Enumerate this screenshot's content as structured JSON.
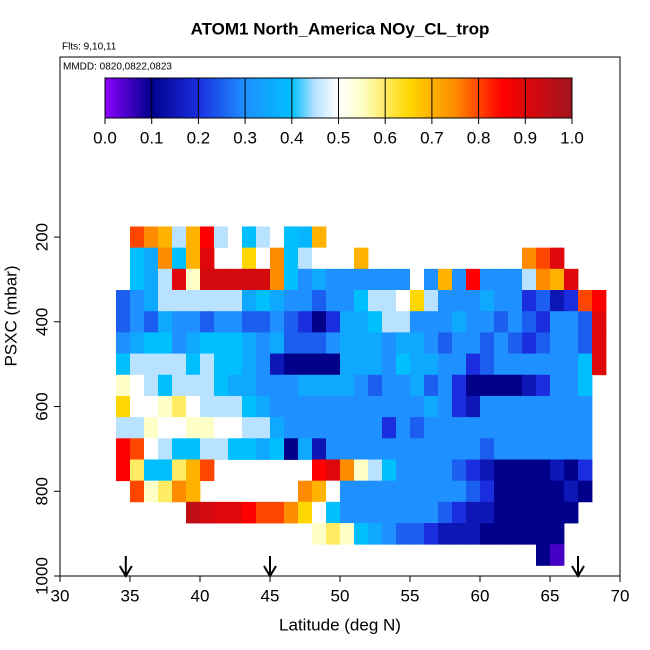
{
  "chart_data": {
    "type": "heatmap",
    "title": "ATOM1 North_America NOy_CL_trop",
    "subtitle": "Flts: 9,10,11",
    "annotation": "MMDD: 0820,0822,0823",
    "xlabel": "Latitude (deg N)",
    "ylabel": "PSXC (mbar)",
    "xlim": [
      30,
      70
    ],
    "xticks": [
      30,
      35,
      40,
      45,
      50,
      55,
      60,
      65,
      70
    ],
    "ylim": [
      1000,
      -225
    ],
    "yticks": [
      200,
      400,
      600,
      800,
      1000
    ],
    "colorbar_ticks": [
      {
        "value": 0,
        "label": "0.0"
      },
      0.1,
      0.2,
      0.3,
      0.4,
      0.5,
      0.6,
      0.7,
      0.8,
      0.9,
      {
        "value": 1,
        "label": "1.0"
      }
    ],
    "colorscale": [
      [
        0,
        "#8b00ff"
      ],
      [
        0.1,
        "#00008b"
      ],
      [
        0.2,
        "#1a2ee0"
      ],
      [
        0.3,
        "#1e90ff"
      ],
      [
        0.4,
        "#00bfff"
      ],
      [
        0.45,
        "#b8e2ff"
      ],
      [
        0.5,
        "#ffffff"
      ],
      [
        0.55,
        "#ffffc8"
      ],
      [
        0.65,
        "#ffd700"
      ],
      [
        0.75,
        "#ff8c00"
      ],
      [
        0.85,
        "#ff0000"
      ],
      [
        1,
        "#a0141e"
      ]
    ],
    "arrows_x": [
      34.7,
      45,
      67
    ],
    "x": [
      34,
      35,
      36,
      37,
      38,
      39,
      40,
      41,
      42,
      43,
      44,
      45,
      46,
      47,
      48,
      49,
      50,
      51,
      52,
      53,
      54,
      55,
      56,
      57,
      58,
      59,
      60,
      61,
      62,
      63,
      64,
      65,
      66,
      67,
      68,
      69
    ],
    "y": [
      175,
      225,
      275,
      325,
      375,
      425,
      475,
      525,
      575,
      625,
      675,
      725,
      775,
      825,
      875,
      925,
      975
    ],
    "z": [
      [
        null,
        0.8,
        0.75,
        0.7,
        0.45,
        0.7,
        0.85,
        0.45,
        0.5,
        0.4,
        0.45,
        0.5,
        0.4,
        0.38,
        0.7,
        null,
        null,
        null,
        null,
        null,
        null,
        null,
        null,
        null,
        null,
        null,
        null,
        null,
        null,
        null,
        null,
        null,
        null,
        null,
        null
      ],
      [
        null,
        0.4,
        0.35,
        0.75,
        0.4,
        0.7,
        0.9,
        null,
        0.5,
        0.65,
        0.5,
        0.75,
        0.4,
        0.45,
        0.5,
        0.5,
        0.5,
        0.7,
        null,
        null,
        null,
        null,
        null,
        null,
        null,
        null,
        null,
        null,
        null,
        0.75,
        0.8,
        0.9,
        null,
        null,
        null
      ],
      [
        null,
        0.4,
        0.35,
        0.45,
        0.9,
        0.55,
        0.92,
        0.92,
        0.92,
        0.92,
        0.92,
        0.75,
        0.4,
        0.3,
        0.35,
        0.3,
        0.3,
        0.3,
        0.3,
        0.3,
        0.3,
        0.5,
        0.3,
        0.7,
        0.3,
        0.85,
        0.3,
        0.3,
        0.3,
        0.45,
        0.75,
        0.7,
        0.9,
        null,
        null
      ],
      [
        0.25,
        0.3,
        0.35,
        0.45,
        0.45,
        0.45,
        0.45,
        0.45,
        0.45,
        0.35,
        0.4,
        0.35,
        0.3,
        0.3,
        0.25,
        0.3,
        0.3,
        0.4,
        0.45,
        0.45,
        0.5,
        0.65,
        0.45,
        0.3,
        0.3,
        0.3,
        0.35,
        0.3,
        0.3,
        0.2,
        0.25,
        0.15,
        0.2,
        0.8,
        0.85
      ],
      [
        0.25,
        0.3,
        0.25,
        0.35,
        0.3,
        0.3,
        0.25,
        0.3,
        0.3,
        0.25,
        0.25,
        0.3,
        0.25,
        0.2,
        0.1,
        0.2,
        0.35,
        0.35,
        0.4,
        0.45,
        0.45,
        0.3,
        0.3,
        0.3,
        0.35,
        0.3,
        0.3,
        0.25,
        0.3,
        0.25,
        0.2,
        0.3,
        0.3,
        0.25,
        0.9
      ],
      [
        0.3,
        0.35,
        0.4,
        0.4,
        0.3,
        0.35,
        0.4,
        0.4,
        0.4,
        0.35,
        0.3,
        0.35,
        0.25,
        0.25,
        0.25,
        0.3,
        0.35,
        0.35,
        0.35,
        0.3,
        0.35,
        0.35,
        0.3,
        0.25,
        0.3,
        0.3,
        0.25,
        0.3,
        0.25,
        0.2,
        0.25,
        0.3,
        0.3,
        0.25,
        0.9
      ],
      [
        0.4,
        0.45,
        0.45,
        0.45,
        0.45,
        0.4,
        0.45,
        0.4,
        0.4,
        0.35,
        0.3,
        0.15,
        0.1,
        0.1,
        0.1,
        0.1,
        0.35,
        0.35,
        0.35,
        0.3,
        0.4,
        0.35,
        0.35,
        0.3,
        0.3,
        0.2,
        0.25,
        0.3,
        0.3,
        0.3,
        0.3,
        0.3,
        0.3,
        0.4,
        0.9
      ],
      [
        0.55,
        0.5,
        0.45,
        0.4,
        0.45,
        0.45,
        0.45,
        0.4,
        0.35,
        0.35,
        0.3,
        0.3,
        0.3,
        0.35,
        0.35,
        0.35,
        0.35,
        0.3,
        0.25,
        0.3,
        0.3,
        0.35,
        0.25,
        0.3,
        0.2,
        0.1,
        0.1,
        0.1,
        0.1,
        0.15,
        0.2,
        0.3,
        0.3,
        0.4,
        null
      ],
      [
        0.65,
        0.5,
        0.5,
        0.55,
        0.6,
        0.5,
        0.45,
        0.45,
        0.45,
        0.4,
        0.35,
        0.3,
        0.3,
        0.3,
        0.3,
        0.3,
        0.3,
        0.3,
        0.3,
        0.3,
        0.3,
        0.3,
        0.35,
        0.3,
        0.2,
        0.15,
        0.3,
        0.3,
        0.3,
        0.3,
        0.3,
        0.3,
        0.3,
        0.3,
        null
      ],
      [
        0.45,
        0.45,
        0.55,
        0.5,
        0.5,
        0.55,
        0.55,
        0.5,
        0.5,
        0.45,
        0.45,
        0.35,
        0.3,
        0.3,
        0.3,
        0.3,
        0.3,
        0.3,
        0.3,
        0.2,
        0.3,
        0.25,
        0.3,
        0.3,
        0.3,
        0.3,
        0.3,
        0.3,
        0.3,
        0.3,
        0.3,
        0.3,
        0.3,
        0.3,
        null
      ],
      [
        0.85,
        0.8,
        0.5,
        0.45,
        0.4,
        0.4,
        0.45,
        0.45,
        0.4,
        0.4,
        0.35,
        0.4,
        0.1,
        0.35,
        0.15,
        0.3,
        0.3,
        0.3,
        0.3,
        0.3,
        0.3,
        0.3,
        0.3,
        0.3,
        0.3,
        0.3,
        0.25,
        0.3,
        0.3,
        0.3,
        0.3,
        0.3,
        0.3,
        0.3,
        null
      ],
      [
        0.85,
        0.6,
        0.4,
        0.4,
        0.6,
        0.7,
        0.8,
        null,
        null,
        null,
        null,
        null,
        null,
        null,
        0.85,
        0.9,
        0.75,
        0.55,
        0.45,
        0.4,
        0.3,
        0.3,
        0.3,
        0.3,
        0.25,
        0.2,
        0.15,
        0.1,
        0.1,
        0.1,
        0.1,
        0.15,
        0.1,
        0.2,
        null
      ],
      [
        null,
        0.8,
        0.55,
        0.6,
        0.75,
        0.7,
        null,
        null,
        null,
        null,
        null,
        null,
        null,
        0.75,
        0.7,
        0.5,
        0.3,
        0.3,
        0.3,
        0.3,
        0.3,
        0.3,
        0.3,
        0.3,
        0.3,
        0.25,
        0.2,
        0.1,
        0.1,
        0.1,
        0.1,
        0.1,
        0.15,
        0.1,
        null
      ],
      [
        null,
        null,
        null,
        null,
        null,
        0.95,
        0.92,
        0.9,
        0.9,
        0.85,
        0.8,
        0.8,
        0.75,
        0.65,
        0.5,
        0.4,
        0.3,
        0.3,
        0.3,
        0.3,
        0.3,
        0.3,
        0.3,
        0.25,
        0.2,
        0.15,
        0.15,
        0.1,
        0.1,
        0.1,
        0.1,
        0.1,
        0.1,
        null,
        null
      ],
      [
        null,
        null,
        null,
        null,
        null,
        null,
        null,
        null,
        null,
        null,
        null,
        null,
        null,
        null,
        0.55,
        0.6,
        0.55,
        0.4,
        0.35,
        0.3,
        0.25,
        0.25,
        0.2,
        0.15,
        0.15,
        0.15,
        0.1,
        0.1,
        0.1,
        0.1,
        0.1,
        0.1,
        null,
        null,
        null
      ],
      [
        null,
        null,
        null,
        null,
        null,
        null,
        null,
        null,
        null,
        null,
        null,
        null,
        null,
        null,
        null,
        null,
        null,
        null,
        null,
        null,
        null,
        null,
        null,
        null,
        null,
        null,
        null,
        null,
        null,
        null,
        0.1,
        0.05,
        null,
        null,
        null
      ]
    ]
  }
}
